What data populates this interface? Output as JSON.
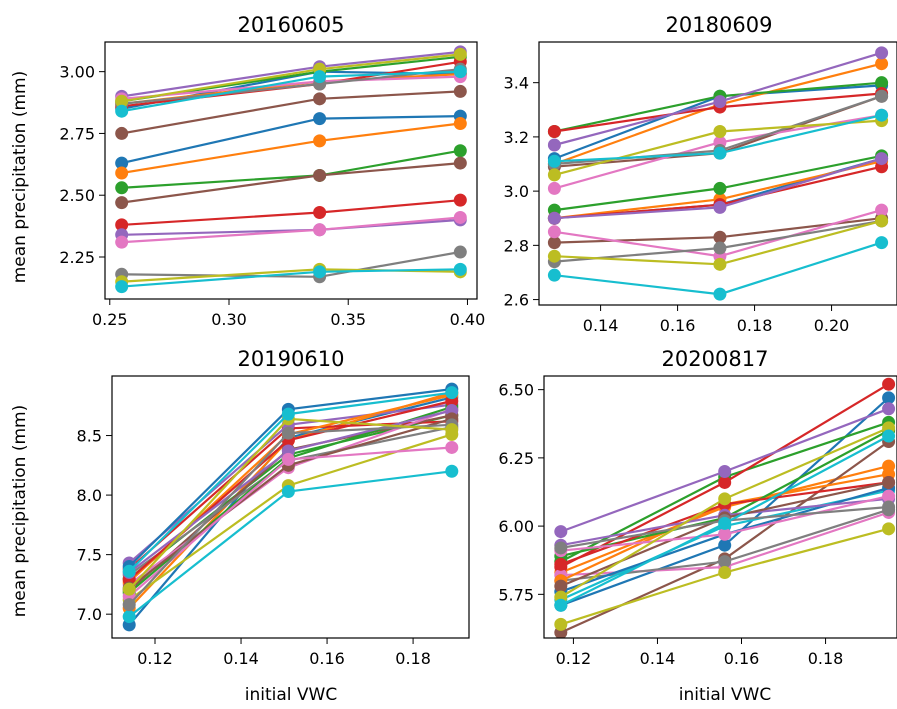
{
  "colors": [
    "#1f77b4",
    "#ff7f0e",
    "#2ca02c",
    "#d62728",
    "#9467bd",
    "#8c564b",
    "#e377c2",
    "#7f7f7f",
    "#bcbd22",
    "#17becf"
  ],
  "chart_data": [
    {
      "type": "line",
      "title": "20160605",
      "xlabel": "",
      "ylabel": "mean precipitation (mm)",
      "x": [
        0.255,
        0.338,
        0.397
      ],
      "xlim": [
        0.248,
        0.404
      ],
      "ylim": [
        2.08,
        3.12
      ],
      "xticks": [
        "0.25",
        "0.30",
        "0.35",
        "0.40"
      ],
      "yticks": [
        "2.25",
        "2.50",
        "2.75",
        "3.00"
      ],
      "series": [
        {
          "values": [
            2.63,
            2.81,
            2.82
          ]
        },
        {
          "values": [
            2.59,
            2.72,
            2.79
          ]
        },
        {
          "values": [
            2.53,
            2.58,
            2.68
          ]
        },
        {
          "values": [
            2.38,
            2.43,
            2.48
          ]
        },
        {
          "values": [
            2.34,
            2.36,
            2.4
          ]
        },
        {
          "values": [
            2.47,
            2.58,
            2.63
          ]
        },
        {
          "values": [
            2.31,
            2.36,
            2.41
          ]
        },
        {
          "values": [
            2.18,
            2.17,
            2.27
          ]
        },
        {
          "values": [
            2.15,
            2.2,
            2.19
          ]
        },
        {
          "values": [
            2.13,
            2.19,
            2.2
          ]
        },
        {
          "values": [
            2.85,
            3.0,
            2.99
          ]
        },
        {
          "values": [
            2.87,
            2.96,
            2.99
          ]
        },
        {
          "values": [
            2.88,
            3.0,
            3.06
          ]
        },
        {
          "values": [
            2.86,
            2.95,
            3.04
          ]
        },
        {
          "values": [
            2.9,
            3.02,
            3.08
          ]
        },
        {
          "values": [
            2.75,
            2.89,
            2.92
          ]
        },
        {
          "values": [
            2.89,
            2.96,
            2.98
          ]
        },
        {
          "values": [
            2.87,
            2.95,
            3.01
          ]
        },
        {
          "values": [
            2.88,
            3.01,
            3.07
          ]
        },
        {
          "values": [
            2.84,
            2.98,
            3.0
          ]
        }
      ]
    },
    {
      "type": "line",
      "title": "20180609",
      "xlabel": "",
      "ylabel": "",
      "x": [
        0.128,
        0.171,
        0.213
      ],
      "xlim": [
        0.124,
        0.217
      ],
      "ylim": [
        2.58,
        3.55
      ],
      "xticks": [
        "0.14",
        "0.16",
        "0.18",
        "0.20"
      ],
      "yticks": [
        "2.6",
        "2.8",
        "3.0",
        "3.2",
        "3.4"
      ],
      "series": [
        {
          "values": [
            3.12,
            3.35,
            3.39
          ]
        },
        {
          "values": [
            3.1,
            3.32,
            3.47
          ]
        },
        {
          "values": [
            3.22,
            3.35,
            3.4
          ]
        },
        {
          "values": [
            3.22,
            3.31,
            3.36
          ]
        },
        {
          "values": [
            3.17,
            3.33,
            3.51
          ]
        },
        {
          "values": [
            3.09,
            3.14,
            3.35
          ]
        },
        {
          "values": [
            3.01,
            3.18,
            3.28
          ]
        },
        {
          "values": [
            3.1,
            3.15,
            3.35
          ]
        },
        {
          "values": [
            3.06,
            3.22,
            3.26
          ]
        },
        {
          "values": [
            3.11,
            3.14,
            3.28
          ]
        },
        {
          "values": [
            2.9,
            2.95,
            3.12
          ]
        },
        {
          "values": [
            2.9,
            2.97,
            3.11
          ]
        },
        {
          "values": [
            2.93,
            3.01,
            3.13
          ]
        },
        {
          "values": [
            2.9,
            2.95,
            3.09
          ]
        },
        {
          "values": [
            2.9,
            2.94,
            3.12
          ]
        },
        {
          "values": [
            2.81,
            2.83,
            2.9
          ]
        },
        {
          "values": [
            2.85,
            2.76,
            2.93
          ]
        },
        {
          "values": [
            2.74,
            2.79,
            2.89
          ]
        },
        {
          "values": [
            2.76,
            2.73,
            2.89
          ]
        },
        {
          "values": [
            2.69,
            2.62,
            2.81
          ]
        }
      ]
    },
    {
      "type": "line",
      "title": "20190610",
      "xlabel": "initial VWC",
      "ylabel": "mean precipitation (mm)",
      "x": [
        0.114,
        0.151,
        0.189
      ],
      "xlim": [
        0.11,
        0.193
      ],
      "ylim": [
        6.8,
        9.0
      ],
      "xticks": [
        "0.12",
        "0.14",
        "0.16",
        "0.18"
      ],
      "yticks": [
        "7.0",
        "7.5",
        "8.0",
        "8.5"
      ],
      "series": [
        {
          "values": [
            6.91,
            8.48,
            8.82
          ]
        },
        {
          "values": [
            7.05,
            8.46,
            8.86
          ]
        },
        {
          "values": [
            7.3,
            8.34,
            8.67
          ]
        },
        {
          "values": [
            7.38,
            8.56,
            8.62
          ]
        },
        {
          "values": [
            7.43,
            8.59,
            8.76
          ]
        },
        {
          "values": [
            7.2,
            8.38,
            8.67
          ]
        },
        {
          "values": [
            7.25,
            8.23,
            8.72
          ]
        },
        {
          "values": [
            7.33,
            8.29,
            8.57
          ]
        },
        {
          "values": [
            7.12,
            8.08,
            8.51
          ]
        },
        {
          "values": [
            6.98,
            8.03,
            8.2
          ]
        },
        {
          "values": [
            7.4,
            8.72,
            8.89
          ]
        },
        {
          "values": [
            7.27,
            8.51,
            8.84
          ]
        },
        {
          "values": [
            7.18,
            8.31,
            8.74
          ]
        },
        {
          "values": [
            7.29,
            8.46,
            8.79
          ]
        },
        {
          "values": [
            7.35,
            8.37,
            8.71
          ]
        },
        {
          "values": [
            7.22,
            8.25,
            8.64
          ]
        },
        {
          "values": [
            7.15,
            8.3,
            8.4
          ]
        },
        {
          "values": [
            7.08,
            8.52,
            8.59
          ]
        },
        {
          "values": [
            7.21,
            8.64,
            8.55
          ]
        },
        {
          "values": [
            7.36,
            8.68,
            8.86
          ]
        }
      ]
    },
    {
      "type": "line",
      "title": "20200817",
      "xlabel": "initial VWC",
      "ylabel": "",
      "x": [
        0.117,
        0.156,
        0.195
      ],
      "xlim": [
        0.113,
        0.197
      ],
      "ylim": [
        5.59,
        6.55
      ],
      "xticks": [
        "0.12",
        "0.14",
        "0.16",
        "0.18"
      ],
      "yticks": [
        "5.75",
        "6.00",
        "6.25",
        "6.50"
      ],
      "series": [
        {
          "values": [
            5.71,
            5.93,
            6.47
          ]
        },
        {
          "values": [
            5.83,
            6.07,
            6.22
          ]
        },
        {
          "values": [
            5.87,
            6.18,
            6.38
          ]
        },
        {
          "values": [
            5.85,
            6.16,
            6.52
          ]
        },
        {
          "values": [
            5.98,
            6.2,
            6.43
          ]
        },
        {
          "values": [
            5.61,
            5.88,
            6.31
          ]
        },
        {
          "values": [
            5.82,
            5.85,
            6.05
          ]
        },
        {
          "values": [
            5.8,
            5.87,
            6.06
          ]
        },
        {
          "values": [
            5.64,
            5.83,
            5.99
          ]
        },
        {
          "values": [
            5.73,
            6.0,
            6.13
          ]
        },
        {
          "values": [
            5.76,
            5.97,
            6.14
          ]
        },
        {
          "values": [
            5.8,
            6.08,
            6.19
          ]
        },
        {
          "values": [
            5.89,
            6.03,
            6.35
          ]
        },
        {
          "values": [
            5.86,
            6.08,
            6.16
          ]
        },
        {
          "values": [
            5.93,
            6.04,
            6.1
          ]
        },
        {
          "values": [
            5.78,
            6.03,
            6.16
          ]
        },
        {
          "values": [
            5.91,
            5.97,
            6.11
          ]
        },
        {
          "values": [
            5.92,
            6.02,
            6.07
          ]
        },
        {
          "values": [
            5.74,
            6.1,
            6.36
          ]
        },
        {
          "values": [
            5.71,
            6.01,
            6.33
          ]
        }
      ]
    }
  ]
}
